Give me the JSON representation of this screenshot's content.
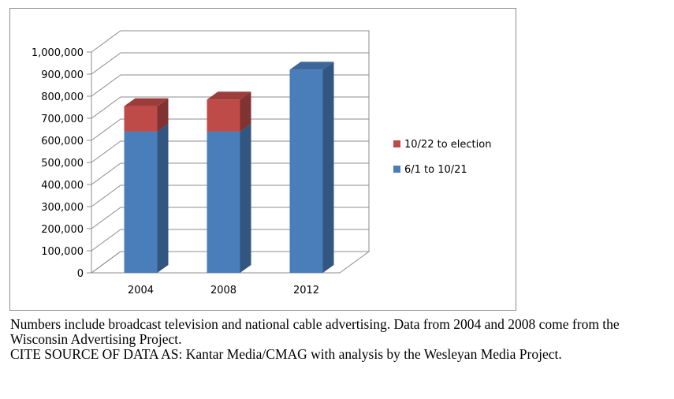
{
  "chart_data": {
    "type": "bar",
    "stacked": true,
    "three_d": true,
    "categories": [
      "2004",
      "2008",
      "2012"
    ],
    "series": [
      {
        "name": "6/1 to 10/21",
        "color": "#4a7ebb",
        "values": [
          640000,
          640000,
          920000
        ]
      },
      {
        "name": "10/22 to election",
        "color": "#be4b48",
        "values": [
          115000,
          145000,
          0
        ]
      }
    ],
    "ylim": [
      0,
      1000000
    ],
    "yticks": [
      0,
      100000,
      200000,
      300000,
      400000,
      500000,
      600000,
      700000,
      800000,
      900000,
      1000000
    ],
    "ytick_labels": [
      "0",
      "100,000",
      "200,000",
      "300,000",
      "400,000",
      "500,000",
      "600,000",
      "700,000",
      "800,000",
      "900,000",
      "1,000,000"
    ],
    "grid": true,
    "legend_position": "right"
  },
  "caption": {
    "line1": "Numbers include broadcast television and national cable advertising.  Data from 2004 and 2008 come from the Wisconsin Advertising Project.",
    "line2": "CITE SOURCE OF DATA AS:  Kantar Media/CMAG with analysis by the Wesleyan Media Project."
  }
}
